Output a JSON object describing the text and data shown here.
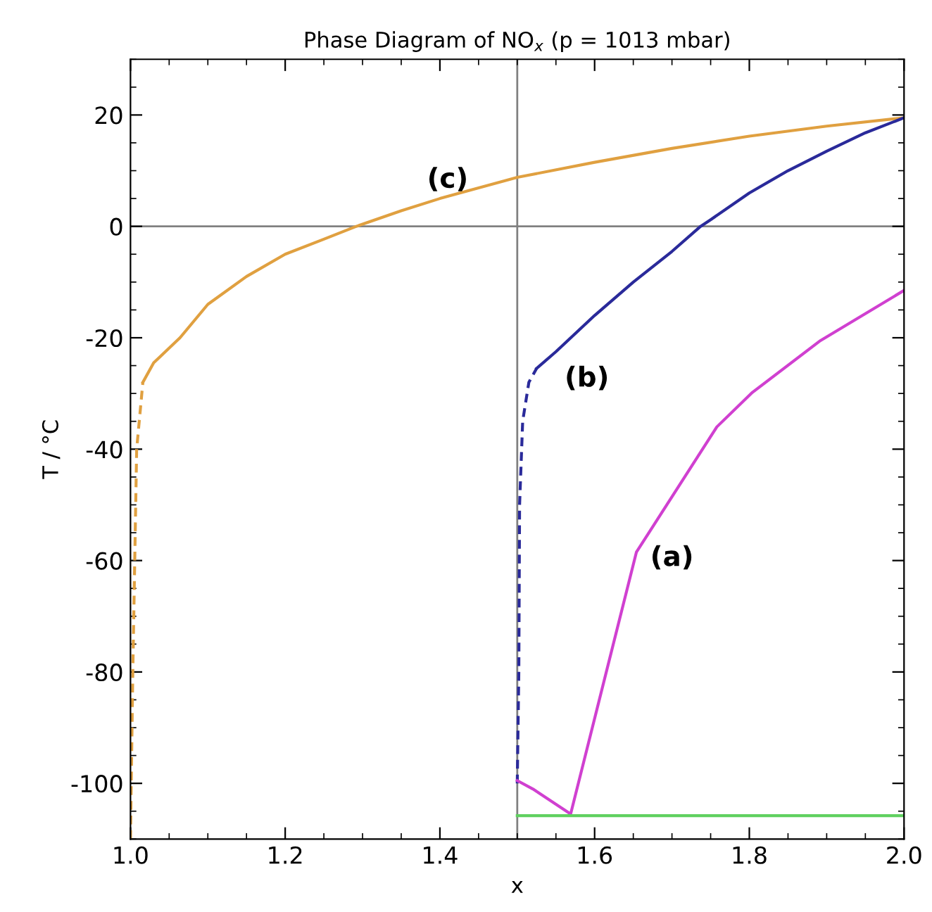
{
  "chart_data": {
    "type": "line",
    "title": "Phase Diagram of NO$_{x}$ (p = 1013 mbar)",
    "xlabel": "x",
    "ylabel": "T / °C",
    "xlim": [
      1.0,
      2.0
    ],
    "ylim": [
      -110,
      30
    ],
    "xticks": [
      {
        "value": 1.0,
        "label": "1.0"
      },
      {
        "value": 1.2,
        "label": "1.2"
      },
      {
        "value": 1.4,
        "label": "1.4"
      },
      {
        "value": 1.6,
        "label": "1.6"
      },
      {
        "value": 1.8,
        "label": "1.8"
      },
      {
        "value": 2.0,
        "label": "2.0"
      }
    ],
    "yticks": [
      -100,
      -80,
      -60,
      -40,
      -20,
      0,
      20
    ],
    "grid": false,
    "legend": false,
    "marker": "none",
    "series": [
      {
        "color": "#e0a040",
        "line_style": "dashed",
        "x": [
          1.0,
          1.003,
          1.008,
          1.016
        ],
        "values": [
          -110,
          -80,
          -40,
          -28
        ]
      },
      {
        "color": "#e0a040",
        "line_style": "solid",
        "x": [
          1.016,
          1.03,
          1.064,
          1.1,
          1.15,
          1.2,
          1.25,
          1.292,
          1.35,
          1.4,
          1.5,
          1.6,
          1.7,
          1.8,
          1.9,
          2.0
        ],
        "values": [
          -28,
          -24.5,
          -20,
          -14,
          -9,
          -5,
          -2.3,
          0,
          2.8,
          5,
          8.8,
          11.5,
          14,
          16.2,
          18,
          19.5
        ]
      },
      {
        "color": "#2a2a9a",
        "line_style": "dashed",
        "x": [
          1.5,
          1.502,
          1.503,
          1.507,
          1.515,
          1.525
        ],
        "values": [
          -100,
          -80,
          -50,
          -35,
          -28,
          -25.5
        ]
      },
      {
        "color": "#2a2a9a",
        "line_style": "solid",
        "x": [
          1.525,
          1.55,
          1.6,
          1.65,
          1.7,
          1.737,
          1.75,
          1.8,
          1.85,
          1.9,
          1.95,
          2.0
        ],
        "values": [
          -25.5,
          -22.5,
          -16,
          -10,
          -4.5,
          0,
          1.2,
          6,
          10,
          13.5,
          16.8,
          19.5
        ]
      },
      {
        "color": "#d040d0",
        "line_style": "solid",
        "x": [
          1.5,
          1.52,
          1.569,
          1.654,
          1.758,
          1.804,
          1.892,
          2.0
        ],
        "values": [
          -99.5,
          -101,
          -105.5,
          -58.5,
          -36,
          -29.8,
          -20.5,
          -11.5
        ]
      },
      {
        "color": "#60d060",
        "line_style": "solid",
        "x": [
          1.5,
          2.0
        ],
        "values": [
          -105.8,
          -105.8
        ]
      }
    ],
    "ref_lines": [
      {
        "axis": "x",
        "value": 1.5,
        "color": "#808080"
      },
      {
        "axis": "y",
        "value": 0,
        "color": "#808080"
      }
    ],
    "annotations": [
      "(c)",
      "(b)",
      "(a)"
    ]
  }
}
